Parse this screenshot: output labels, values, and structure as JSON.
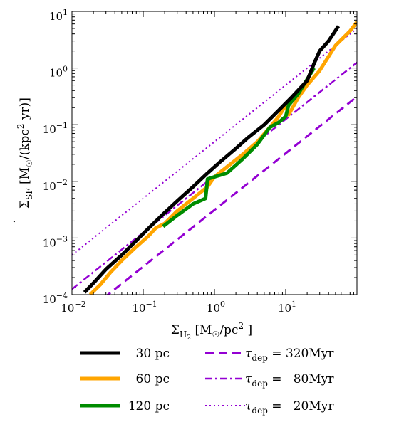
{
  "chart_data": {
    "type": "line",
    "title": "",
    "xscale": "log",
    "yscale": "log",
    "xlim": [
      0.01,
      100
    ],
    "ylim": [
      0.0001,
      10
    ],
    "xlabel": {
      "base": "Σ",
      "sub": "H",
      "subsub": "2",
      "units": "[M",
      "sun": "☉",
      "units2": "/pc",
      "sup": "2",
      "units3": " ]"
    },
    "ylabel": {
      "base": "Σ",
      "sub": "SF",
      "units": "[M",
      "sun": "☉",
      "units2": "/(kpc",
      "sup": "2",
      "units3": " yr)]"
    },
    "x_ticks": [
      {
        "base": "10",
        "exp": "−2"
      },
      {
        "base": "10",
        "exp": "−1"
      },
      {
        "base": "10",
        "exp": "0"
      },
      {
        "base": "10",
        "exp": "1"
      }
    ],
    "y_ticks": [
      {
        "base": "10",
        "exp": "−4"
      },
      {
        "base": "10",
        "exp": "−3"
      },
      {
        "base": "10",
        "exp": "−2"
      },
      {
        "base": "10",
        "exp": "−1"
      },
      {
        "base": "10",
        "exp": "0"
      },
      {
        "base": "10",
        "exp": "1"
      }
    ],
    "grid": false,
    "legend_placement": "below plot, two columns",
    "series": [
      {
        "name": "30 pc",
        "color": "#000000",
        "style": "solid",
        "x": [
          0.015,
          0.02,
          0.03,
          0.05,
          0.08,
          0.12,
          0.2,
          0.3,
          0.5,
          0.8,
          1.2,
          2,
          3,
          5,
          8,
          12,
          20,
          25,
          30,
          40,
          55
        ],
        "y": [
          0.00011,
          0.00016,
          0.00028,
          0.0005,
          0.0009,
          0.0015,
          0.0028,
          0.0045,
          0.008,
          0.014,
          0.022,
          0.038,
          0.06,
          0.1,
          0.18,
          0.3,
          0.6,
          1.2,
          2.0,
          3.0,
          5.5
        ]
      },
      {
        "name": "60 pc",
        "color": "#ffa500",
        "style": "solid",
        "x": [
          0.018,
          0.025,
          0.035,
          0.05,
          0.08,
          0.12,
          0.15,
          0.2,
          0.3,
          0.5,
          0.7,
          0.8,
          1.0,
          1.5,
          2.5,
          4,
          6,
          8,
          10,
          11,
          15,
          20,
          30,
          50,
          80,
          100
        ],
        "y": [
          0.0001,
          0.00015,
          0.00025,
          0.0004,
          0.0007,
          0.0011,
          0.0015,
          0.0018,
          0.003,
          0.005,
          0.007,
          0.008,
          0.012,
          0.018,
          0.03,
          0.05,
          0.09,
          0.14,
          0.22,
          0.15,
          0.3,
          0.5,
          0.9,
          2.5,
          4.5,
          6.5
        ]
      },
      {
        "name": "120 pc",
        "color": "#008c00",
        "style": "solid",
        "x": [
          0.19,
          0.3,
          0.5,
          0.75,
          0.8,
          1.0,
          1.5,
          2.5,
          4,
          6,
          8,
          10,
          11,
          15,
          25
        ],
        "y": [
          0.0016,
          0.0025,
          0.004,
          0.005,
          0.011,
          0.012,
          0.014,
          0.025,
          0.045,
          0.09,
          0.11,
          0.14,
          0.22,
          0.35,
          1.0
        ]
      },
      {
        "name": "τ dep = 320Myr",
        "label": {
          "tau": "τ",
          "sub": "dep",
          "rest": " = 320Myr"
        },
        "color": "#9400d3",
        "style": "dashed",
        "tau_myr": 320
      },
      {
        "name": "τ dep = 80Myr",
        "label": {
          "tau": "τ",
          "sub": "dep",
          "rest": " =   80Myr"
        },
        "color": "#9400d3",
        "style": "dashdot",
        "tau_myr": 80
      },
      {
        "name": "τ dep = 20Myr",
        "label": {
          "tau": "τ",
          "sub": "dep",
          "rest": " =   20Myr"
        },
        "color": "#9400d3",
        "style": "dotted",
        "tau_myr": 20
      }
    ]
  }
}
